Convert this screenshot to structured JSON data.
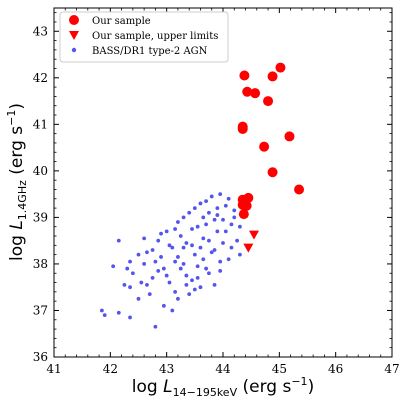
{
  "chart_data": {
    "type": "scatter",
    "xlabel": "log L_14-195keV (erg s^-1)",
    "ylabel": "log L_1.4GHz (erg s^-1)",
    "xlim": [
      41,
      47
    ],
    "ylim": [
      36,
      43.5
    ],
    "xticks": [
      "41",
      "42",
      "43",
      "44",
      "45",
      "46",
      "47"
    ],
    "yticks": [
      "36",
      "37",
      "38",
      "39",
      "40",
      "41",
      "42",
      "43"
    ],
    "legend_position": "top-left",
    "series": [
      {
        "name": "Our sample",
        "marker": "circle",
        "color": "#ff0000",
        "points": [
          [
            44.38,
            42.05
          ],
          [
            44.57,
            41.67
          ],
          [
            44.43,
            41.7
          ],
          [
            45.02,
            42.22
          ],
          [
            44.88,
            42.03
          ],
          [
            44.8,
            41.5
          ],
          [
            44.35,
            40.95
          ],
          [
            44.35,
            40.9
          ],
          [
            45.18,
            40.74
          ],
          [
            44.73,
            40.52
          ],
          [
            44.88,
            39.97
          ],
          [
            45.35,
            39.6
          ],
          [
            44.45,
            39.42
          ],
          [
            44.35,
            39.38
          ],
          [
            44.4,
            39.33
          ],
          [
            44.35,
            39.27
          ],
          [
            44.42,
            39.25
          ],
          [
            44.37,
            39.07
          ]
        ]
      },
      {
        "name": "Our sample, upper limits",
        "marker": "triangle-down",
        "color": "#ff0000",
        "points": [
          [
            44.55,
            38.63
          ],
          [
            44.45,
            38.35
          ]
        ]
      },
      {
        "name": "BASS/DR1 type-2 AGN",
        "marker": "small-circle",
        "color": "#5555ee",
        "points": [
          [
            41.85,
            37.0
          ],
          [
            41.9,
            36.9
          ],
          [
            42.15,
            36.95
          ],
          [
            42.35,
            36.85
          ],
          [
            42.8,
            36.65
          ],
          [
            42.25,
            37.55
          ],
          [
            42.55,
            37.6
          ],
          [
            42.5,
            37.25
          ],
          [
            42.35,
            37.5
          ],
          [
            42.05,
            37.95
          ],
          [
            42.15,
            38.5
          ],
          [
            42.35,
            38.05
          ],
          [
            42.4,
            37.8
          ],
          [
            42.6,
            38.0
          ],
          [
            42.65,
            38.25
          ],
          [
            42.75,
            38.3
          ],
          [
            42.85,
            38.5
          ],
          [
            42.9,
            38.15
          ],
          [
            42.95,
            37.9
          ],
          [
            43.0,
            38.7
          ],
          [
            43.1,
            38.35
          ],
          [
            43.15,
            38.05
          ],
          [
            43.2,
            38.9
          ],
          [
            43.25,
            38.6
          ],
          [
            43.3,
            38.0
          ],
          [
            43.35,
            37.75
          ],
          [
            43.4,
            39.1
          ],
          [
            43.45,
            38.4
          ],
          [
            43.5,
            38.2
          ],
          [
            43.55,
            38.8
          ],
          [
            43.6,
            39.3
          ],
          [
            43.65,
            38.55
          ],
          [
            43.7,
            38.85
          ],
          [
            43.75,
            39.1
          ],
          [
            43.8,
            39.45
          ],
          [
            43.85,
            38.3
          ],
          [
            43.9,
            38.7
          ],
          [
            43.95,
            39.5
          ],
          [
            44.0,
            38.95
          ],
          [
            44.05,
            39.25
          ],
          [
            44.1,
            39.4
          ],
          [
            44.15,
            38.85
          ],
          [
            44.2,
            39.0
          ],
          [
            44.25,
            38.5
          ],
          [
            44.3,
            38.2
          ],
          [
            43.05,
            37.6
          ],
          [
            43.15,
            37.4
          ],
          [
            43.25,
            37.9
          ],
          [
            43.35,
            38.45
          ],
          [
            43.45,
            37.65
          ],
          [
            43.55,
            37.95
          ],
          [
            43.65,
            38.1
          ],
          [
            43.75,
            37.8
          ],
          [
            43.85,
            37.55
          ],
          [
            43.95,
            38.05
          ],
          [
            42.7,
            37.35
          ],
          [
            42.95,
            37.1
          ],
          [
            43.1,
            37.0
          ],
          [
            43.2,
            37.25
          ],
          [
            42.6,
            38.55
          ],
          [
            42.8,
            38.05
          ],
          [
            43.0,
            37.75
          ],
          [
            43.3,
            39.0
          ],
          [
            43.5,
            39.2
          ],
          [
            43.7,
            39.35
          ],
          [
            43.9,
            39.05
          ],
          [
            44.05,
            38.7
          ],
          [
            44.15,
            38.35
          ],
          [
            43.6,
            37.5
          ],
          [
            43.4,
            37.35
          ],
          [
            43.55,
            37.7
          ],
          [
            43.75,
            38.5
          ],
          [
            43.85,
            38.95
          ],
          [
            42.9,
            38.65
          ],
          [
            42.5,
            38.2
          ],
          [
            42.3,
            37.9
          ],
          [
            42.75,
            37.7
          ],
          [
            44.0,
            38.45
          ],
          [
            44.1,
            38.1
          ],
          [
            43.95,
            37.85
          ],
          [
            43.3,
            38.35
          ],
          [
            43.45,
            38.75
          ],
          [
            43.65,
            39.0
          ],
          [
            43.2,
            38.15
          ],
          [
            43.05,
            38.4
          ],
          [
            42.85,
            37.85
          ],
          [
            43.35,
            37.55
          ],
          [
            43.5,
            37.45
          ],
          [
            44.2,
            39.15
          ],
          [
            44.3,
            38.8
          ],
          [
            43.8,
            38.25
          ],
          [
            43.15,
            38.75
          ],
          [
            42.65,
            37.55
          ],
          [
            43.9,
            39.2
          ],
          [
            43.6,
            38.35
          ],
          [
            43.7,
            37.9
          ]
        ]
      }
    ]
  }
}
